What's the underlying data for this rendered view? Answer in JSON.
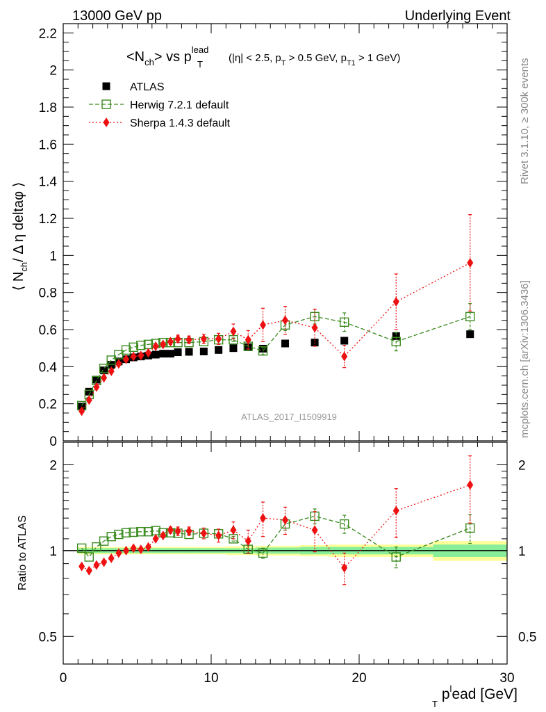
{
  "header": {
    "left": "13000 GeV pp",
    "right": "Underlying Event"
  },
  "side_labels": {
    "top": "Rivet 3.1.10, ≥ 300k events",
    "bottom": "mcplots.cern.ch [arXiv:1306.3436]"
  },
  "analysis_label": "ATLAS_2017_I1509919",
  "chart_data": [
    {
      "type": "scatter",
      "title": {
        "main": "<N",
        "main_sub": "ch",
        "after_sub": "> vs p",
        "p_sup": "lead",
        "p_sub": "T",
        "cut_a": "(|η| < 2.5, p",
        "cut_a_sub": "T",
        "cut_b": " > 0.5 GeV, p",
        "cut_b_sub": "T1",
        "cut_c": " > 1 GeV)"
      },
      "ylabel": {
        "a": "⟨ N",
        "a_sub": "ch",
        "b": "/ Δ η deltaφ ⟩"
      },
      "xlim": [
        0,
        30
      ],
      "ylim": [
        0,
        2.25
      ],
      "yticks": [
        "0",
        "0.2",
        "0.4",
        "0.6",
        "0.8",
        "1",
        "1.2",
        "1.4",
        "1.6",
        "1.8",
        "2",
        "2.2"
      ],
      "series": [
        {
          "name": "ATLAS",
          "color": "#000000",
          "marker": "filled-square",
          "x": [
            1.25,
            1.75,
            2.25,
            2.75,
            3.25,
            3.75,
            4.25,
            4.75,
            5.25,
            5.75,
            6.25,
            6.75,
            7.25,
            7.75,
            8.5,
            9.5,
            10.5,
            11.5,
            12.5,
            13.5,
            15.0,
            17.0,
            19.0,
            22.5,
            27.5
          ],
          "y": [
            0.185,
            0.265,
            0.33,
            0.38,
            0.41,
            0.428,
            0.44,
            0.45,
            0.455,
            0.46,
            0.465,
            0.47,
            0.47,
            0.478,
            0.48,
            0.482,
            0.49,
            0.5,
            0.505,
            0.497,
            0.525,
            0.53,
            0.54,
            0.565,
            0.575
          ]
        },
        {
          "name": "Herwig 7.2.1 default",
          "color": "#3a8a1e",
          "marker": "open-square",
          "line": "dashed",
          "x": [
            1.25,
            1.75,
            2.25,
            2.75,
            3.25,
            3.75,
            4.25,
            4.75,
            5.25,
            5.75,
            6.25,
            6.75,
            7.25,
            7.75,
            8.5,
            9.5,
            10.5,
            11.5,
            12.5,
            13.5,
            15.0,
            17.0,
            19.0,
            22.5,
            27.5
          ],
          "y": [
            0.19,
            0.25,
            0.325,
            0.39,
            0.435,
            0.465,
            0.49,
            0.505,
            0.515,
            0.52,
            0.525,
            0.53,
            0.53,
            0.53,
            0.53,
            0.535,
            0.545,
            0.545,
            0.51,
            0.485,
            0.625,
            0.67,
            0.64,
            0.535,
            0.67
          ],
          "yerr": [
            0,
            0,
            0,
            0,
            0,
            0,
            0,
            0,
            0,
            0,
            0,
            0,
            0,
            0,
            0,
            0,
            0,
            0.01,
            0.015,
            0.02,
            0.03,
            0.04,
            0.05,
            0.05,
            0.07
          ]
        },
        {
          "name": "Sherpa 1.4.3 default",
          "color": "#ee1111",
          "marker": "filled-diamond",
          "line": "dotted",
          "x": [
            1.25,
            1.75,
            2.25,
            2.75,
            3.25,
            3.75,
            4.25,
            4.75,
            5.25,
            5.75,
            6.25,
            6.75,
            7.25,
            7.75,
            8.5,
            9.5,
            10.5,
            11.5,
            12.5,
            13.5,
            15.0,
            17.0,
            19.0,
            22.5,
            27.5
          ],
          "y": [
            0.16,
            0.22,
            0.29,
            0.34,
            0.375,
            0.415,
            0.44,
            0.455,
            0.46,
            0.475,
            0.51,
            0.52,
            0.535,
            0.55,
            0.545,
            0.55,
            0.55,
            0.59,
            0.545,
            0.625,
            0.65,
            0.61,
            0.455,
            0.75,
            0.96
          ],
          "yerr": [
            0,
            0,
            0,
            0,
            0,
            0,
            0,
            0,
            0,
            0,
            0,
            0.01,
            0.015,
            0.02,
            0.02,
            0.025,
            0.03,
            0.04,
            0.05,
            0.09,
            0.075,
            0.1,
            0.06,
            0.15,
            0.26
          ]
        }
      ]
    },
    {
      "type": "scatter",
      "ylabel": "Ratio to ATLAS",
      "xlabel": {
        "a": "p",
        "sup": "l",
        "sub": "T",
        "b": "ead [GeV]"
      },
      "xlim": [
        0,
        30
      ],
      "ylim": [
        0.4,
        2.4
      ],
      "ylog": true,
      "yticks": [
        "0.5",
        "1",
        "2"
      ],
      "xticks": [
        "0",
        "10",
        "20",
        "30"
      ],
      "band_edges": [
        1.0,
        1.5,
        2.0,
        2.5,
        3.0,
        3.5,
        4.0,
        4.5,
        5.0,
        5.5,
        6.0,
        6.5,
        7.0,
        7.5,
        8.0,
        9.0,
        10.0,
        11.0,
        12.0,
        13.0,
        14.0,
        16.0,
        18.0,
        20.0,
        25.0,
        30.0
      ],
      "band_stat": [
        0.02,
        0.02,
        0.02,
        0.02,
        0.02,
        0.02,
        0.02,
        0.02,
        0.02,
        0.02,
        0.02,
        0.02,
        0.02,
        0.02,
        0.02,
        0.02,
        0.02,
        0.02,
        0.02,
        0.025,
        0.025,
        0.03,
        0.03,
        0.03,
        0.05
      ],
      "band_total": [
        0.03,
        0.03,
        0.03,
        0.03,
        0.03,
        0.03,
        0.03,
        0.03,
        0.03,
        0.03,
        0.03,
        0.03,
        0.03,
        0.03,
        0.03,
        0.03,
        0.03,
        0.035,
        0.035,
        0.04,
        0.04,
        0.045,
        0.05,
        0.05,
        0.08
      ],
      "band_colors": {
        "total": "#ffff99",
        "stat": "#88ee99"
      },
      "series": [
        {
          "name": "Herwig 7.2.1 default",
          "color": "#3a8a1e",
          "marker": "open-square",
          "line": "dashed",
          "x": [
            1.25,
            1.75,
            2.25,
            2.75,
            3.25,
            3.75,
            4.25,
            4.75,
            5.25,
            5.75,
            6.25,
            6.75,
            7.25,
            7.75,
            8.5,
            9.5,
            10.5,
            11.5,
            12.5,
            13.5,
            15.0,
            17.0,
            19.0,
            22.5,
            27.5
          ],
          "y": [
            1.02,
            0.95,
            1.03,
            1.08,
            1.12,
            1.14,
            1.155,
            1.16,
            1.165,
            1.165,
            1.175,
            1.155,
            1.155,
            1.15,
            1.14,
            1.15,
            1.145,
            1.1,
            1.01,
            0.98,
            1.24,
            1.32,
            1.24,
            0.95,
            1.2
          ],
          "yerr": [
            0,
            0,
            0,
            0,
            0,
            0,
            0,
            0,
            0,
            0,
            0,
            0,
            0,
            0,
            0,
            0,
            0,
            0.02,
            0.03,
            0.04,
            0.06,
            0.08,
            0.09,
            0.08,
            0.14
          ]
        },
        {
          "name": "Sherpa 1.4.3 default",
          "color": "#ee1111",
          "marker": "filled-diamond",
          "line": "dotted",
          "x": [
            1.25,
            1.75,
            2.25,
            2.75,
            3.25,
            3.75,
            4.25,
            4.75,
            5.25,
            5.75,
            6.25,
            6.75,
            7.25,
            7.75,
            8.5,
            9.5,
            10.5,
            11.5,
            12.5,
            13.5,
            15.0,
            17.0,
            19.0,
            22.5,
            27.5
          ],
          "y": [
            0.88,
            0.85,
            0.89,
            0.91,
            0.94,
            0.98,
            1.0,
            1.02,
            1.01,
            1.03,
            1.1,
            1.13,
            1.18,
            1.17,
            1.17,
            1.15,
            1.13,
            1.18,
            1.08,
            1.3,
            1.28,
            1.18,
            0.87,
            1.38,
            1.7
          ],
          "yerr": [
            0,
            0,
            0,
            0,
            0,
            0,
            0,
            0,
            0,
            0,
            0,
            0.02,
            0.03,
            0.04,
            0.04,
            0.05,
            0.06,
            0.08,
            0.1,
            0.18,
            0.14,
            0.19,
            0.11,
            0.27,
            0.45
          ]
        }
      ]
    }
  ]
}
